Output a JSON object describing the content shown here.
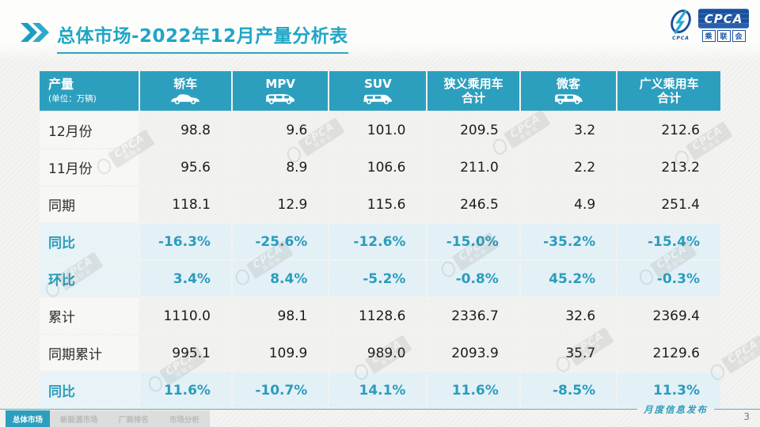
{
  "title": {
    "text": "总体市场-2022年12月产量分析表"
  },
  "logo": {
    "emblem_caption": "CPCA",
    "box_text": "CPCA",
    "sub_chars": [
      "乘",
      "联",
      "会"
    ]
  },
  "colors": {
    "accent_teal": "#2d9fbe",
    "title_teal": "#1fa6c6",
    "percent_text": "#2b9cbc",
    "percent_row_bg": "#e3f1f6",
    "normal_row_bg": "#f1f1ef",
    "logo_blue": "#1a52a2"
  },
  "table": {
    "header": {
      "label": "产量",
      "unit": "(单位：万辆)",
      "columns": [
        {
          "label": "轿车",
          "icon": "sedan-icon"
        },
        {
          "label": "MPV",
          "icon": "mpv-icon"
        },
        {
          "label": "SUV",
          "icon": "suv-icon"
        },
        {
          "label": "狭义乘用车\n合计",
          "icon": null
        },
        {
          "label": "微客",
          "icon": "microvan-icon"
        },
        {
          "label": "广义乘用车\n合计",
          "icon": null
        }
      ]
    },
    "rows": [
      {
        "label": "12月份",
        "type": "normal",
        "values": [
          "98.8",
          "9.6",
          "101.0",
          "209.5",
          "3.2",
          "212.6"
        ]
      },
      {
        "label": "11月份",
        "type": "normal",
        "values": [
          "95.6",
          "8.9",
          "106.6",
          "211.0",
          "2.2",
          "213.2"
        ]
      },
      {
        "label": "同期",
        "type": "normal",
        "values": [
          "118.1",
          "12.9",
          "115.6",
          "246.5",
          "4.9",
          "251.4"
        ]
      },
      {
        "label": "同比",
        "type": "percent",
        "values": [
          "-16.3%",
          "-25.6%",
          "-12.6%",
          "-15.0%",
          "-35.2%",
          "-15.4%"
        ]
      },
      {
        "label": "环比",
        "type": "percent",
        "values": [
          "3.4%",
          "8.4%",
          "-5.2%",
          "-0.8%",
          "45.2%",
          "-0.3%"
        ]
      },
      {
        "label": "累计",
        "type": "normal",
        "values": [
          "1110.0",
          "98.1",
          "1128.6",
          "2336.7",
          "32.6",
          "2369.4"
        ]
      },
      {
        "label": "同期累计",
        "type": "normal",
        "values": [
          "995.1",
          "109.9",
          "989.0",
          "2093.9",
          "35.7",
          "2129.6"
        ]
      },
      {
        "label": "同比",
        "type": "percent",
        "values": [
          "11.6%",
          "-10.7%",
          "14.1%",
          "11.6%",
          "-8.5%",
          "11.3%"
        ]
      }
    ]
  },
  "watermark_text": {
    "line1": "CPCA",
    "line2": "乘联会"
  },
  "footer": {
    "ribbon": "月度信息发布",
    "page": "3",
    "tabs": [
      {
        "label": "总体市场",
        "active": true
      },
      {
        "label": "新能源市场",
        "active": false
      },
      {
        "label": "厂商排名",
        "active": false
      },
      {
        "label": "市场分析",
        "active": false
      }
    ]
  },
  "chart_data": {
    "type": "table",
    "title": "总体市场-2022年12月产量分析表",
    "unit": "万辆",
    "columns": [
      "轿车",
      "MPV",
      "SUV",
      "狭义乘用车合计",
      "微客",
      "广义乘用车合计"
    ],
    "rows": {
      "12月份": [
        98.8,
        9.6,
        101.0,
        209.5,
        3.2,
        212.6
      ],
      "11月份": [
        95.6,
        8.9,
        106.6,
        211.0,
        2.2,
        213.2
      ],
      "同期": [
        118.1,
        12.9,
        115.6,
        246.5,
        4.9,
        251.4
      ],
      "同比": [
        "-16.3%",
        "-25.6%",
        "-12.6%",
        "-15.0%",
        "-35.2%",
        "-15.4%"
      ],
      "环比": [
        "3.4%",
        "8.4%",
        "-5.2%",
        "-0.8%",
        "45.2%",
        "-0.3%"
      ],
      "累计": [
        1110.0,
        98.1,
        1128.6,
        2336.7,
        32.6,
        2369.4
      ],
      "同期累计": [
        995.1,
        109.9,
        989.0,
        2093.9,
        35.7,
        2129.6
      ],
      "同比(累计)": [
        "11.6%",
        "-10.7%",
        "14.1%",
        "11.6%",
        "-8.5%",
        "11.3%"
      ]
    }
  }
}
